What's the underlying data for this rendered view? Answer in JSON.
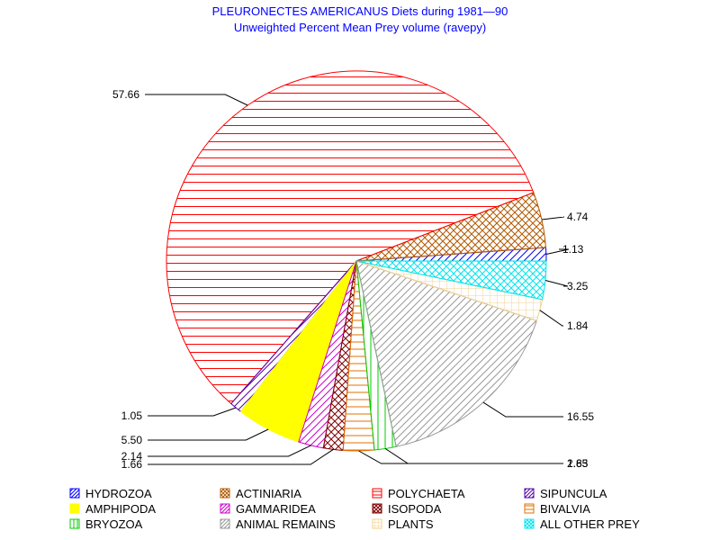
{
  "chart_data": {
    "type": "pie",
    "title": "PLEURONECTES AMERICANUS Diets during 1981—90",
    "subtitle": "Unweighted Percent Mean Prey volume (ravepy)",
    "slices": [
      {
        "name": "HYDROZOA",
        "value": 1.13,
        "label": "1.13",
        "color": "#0000ff",
        "pattern": "diag-fwd"
      },
      {
        "name": "ACTINIARIA",
        "value": 4.74,
        "label": "4.74",
        "color": "#b35900",
        "pattern": "crosshatch"
      },
      {
        "name": "POLYCHAETA",
        "value": 57.66,
        "label": "57.66",
        "color": "#ff0000",
        "pattern": "horizontal"
      },
      {
        "name": "SIPUNCULA",
        "value": 1.05,
        "label": "1.05",
        "color": "#5500aa",
        "pattern": "diag-fwd"
      },
      {
        "name": "AMPHIPODA",
        "value": 5.5,
        "label": "5.50",
        "color": "#ffff00",
        "pattern": "solid"
      },
      {
        "name": "GAMMARIDEA",
        "value": 2.14,
        "label": "2.14",
        "color": "#cc00cc",
        "pattern": "diag-fwd"
      },
      {
        "name": "ISOPODA",
        "value": 1.66,
        "label": "1.66",
        "color": "#800000",
        "pattern": "crosshatch"
      },
      {
        "name": "BIVALVIA",
        "value": 2.63,
        "label": "2.63",
        "color": "#e07000",
        "pattern": "horizontal"
      },
      {
        "name": "BRYOZOA",
        "value": 1.85,
        "label": "1.85",
        "color": "#00cc00",
        "pattern": "vertical"
      },
      {
        "name": "ANIMAL REMAINS",
        "value": 16.55,
        "label": "16.55",
        "color": "#999999",
        "pattern": "diag-fwd"
      },
      {
        "name": "PLANTS",
        "value": 1.84,
        "label": "1.84",
        "color": "#f0d090",
        "pattern": "grid"
      },
      {
        "name": "ALL OTHER PREY",
        "value": 3.25,
        "label": "3.25",
        "color": "#00e5ee",
        "pattern": "crosshatch"
      }
    ],
    "legend_order": [
      "HYDROZOA",
      "ACTINIARIA",
      "POLYCHAETA",
      "SIPUNCULA",
      "AMPHIPODA",
      "GAMMARIDEA",
      "ISOPODA",
      "BIVALVIA",
      "BRYOZOA",
      "ANIMAL REMAINS",
      "PLANTS",
      "ALL OTHER PREY"
    ],
    "legend_placement": "bottom"
  }
}
